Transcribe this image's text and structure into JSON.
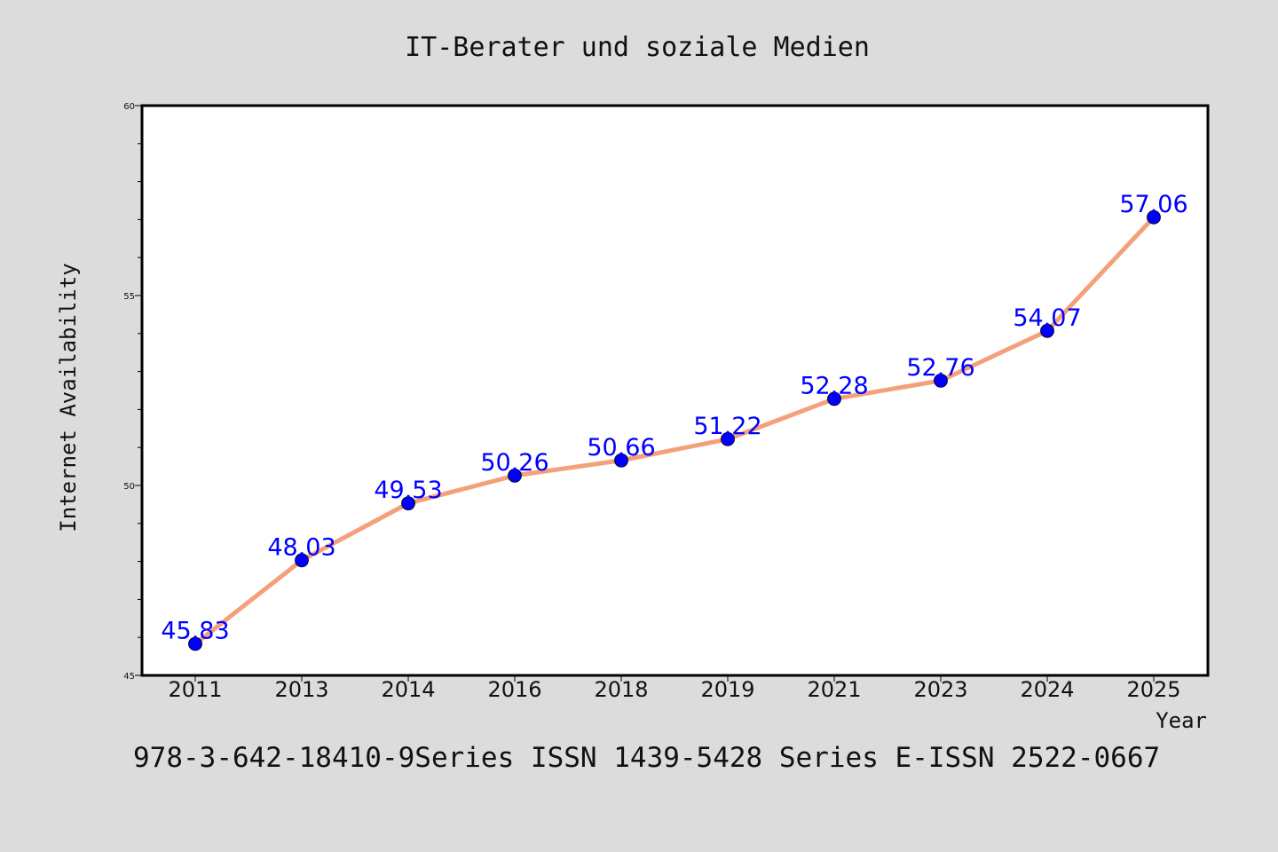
{
  "chart_data": {
    "type": "line",
    "title": "IT-Berater und soziale Medien",
    "xlabel": "Year",
    "ylabel": "Internet Availability",
    "categories": [
      "2011",
      "2013",
      "2014",
      "2016",
      "2018",
      "2019",
      "2021",
      "2023",
      "2024",
      "2025"
    ],
    "series": [
      {
        "values": [
          45.83,
          48.03,
          49.53,
          50.26,
          50.66,
          51.22,
          52.28,
          52.76,
          54.07,
          57.06
        ],
        "labels": [
          "45.83",
          "48.03",
          "49.53",
          "50.26",
          "50.66",
          "51.22",
          "52.28",
          "52.76",
          "54.07",
          "57.06"
        ]
      }
    ],
    "ylim": [
      45,
      60
    ],
    "yticks": [
      "45",
      "50",
      "55",
      "60"
    ],
    "grid": false,
    "colors": {
      "line": "#f4a07a",
      "marker": "#0000ff",
      "label": "#0000ff",
      "background": "#dcdcdc",
      "plot": "#ffffff"
    }
  },
  "footer": "978-3-642-18410-9Series ISSN 1439-5428 Series E-ISSN 2522-0667"
}
